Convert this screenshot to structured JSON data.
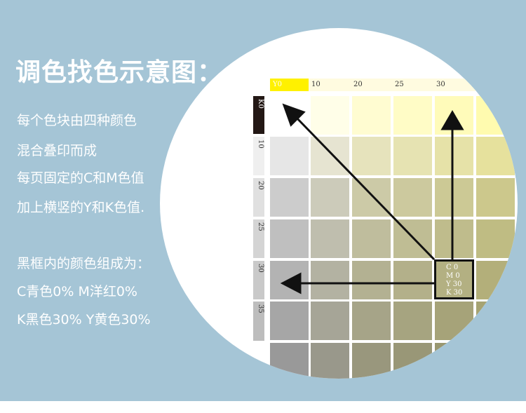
{
  "title": "调色找色示意图：",
  "description": [
    "每个色块由四种颜色",
    "混合叠印而成",
    "每页固定的C和M色值",
    "加上横竖的Y和K色值."
  ],
  "result": [
    "黑框内的颜色组成为：",
    "C青色0%  M洋红0%",
    "K黑色30%   Y黄色30%"
  ],
  "fixed": {
    "c_label": "C 0",
    "m_label": "M 0",
    "c_color": "#00a0e9",
    "m_color": "#e4007f"
  },
  "y_labels": [
    "Y0",
    "10",
    "20",
    "25",
    "30"
  ],
  "k_labels": [
    "K0",
    "10",
    "20",
    "25",
    "30",
    "35"
  ],
  "selected": {
    "lines": [
      "C  0",
      "M 0",
      "Y  30",
      "K  30"
    ]
  },
  "colors": {
    "background": "#a5c5d6",
    "yellow": "#fff100",
    "black": "#231815"
  }
}
